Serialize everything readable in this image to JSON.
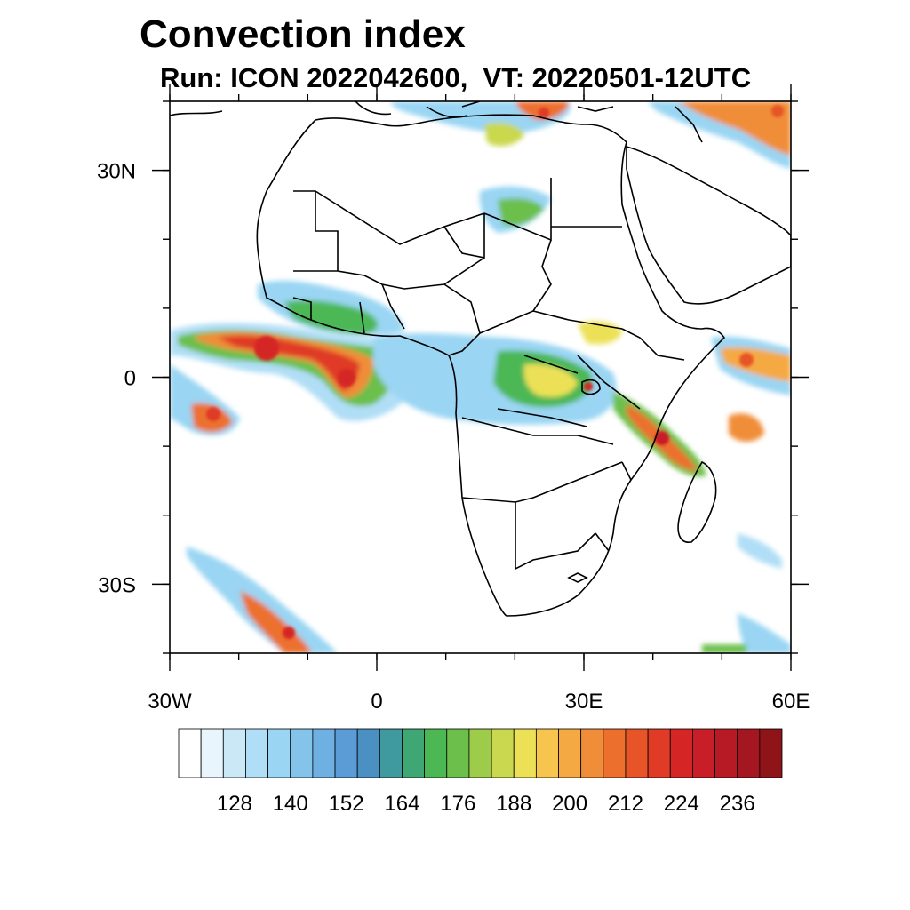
{
  "title": "Convection index",
  "subtitle": "Run: ICON 2022042600,  VT: 20220501-12UTC",
  "map": {
    "lon_range": [
      -30,
      60
    ],
    "lat_range": [
      -40,
      40
    ],
    "lon_ticks": [
      {
        "value": -30,
        "label": "30W"
      },
      {
        "value": 0,
        "label": "0"
      },
      {
        "value": 30,
        "label": "30E"
      },
      {
        "value": 60,
        "label": "60E"
      }
    ],
    "lat_ticks": [
      {
        "value": 30,
        "label": "30N"
      },
      {
        "value": 0,
        "label": "0"
      },
      {
        "value": -30,
        "label": "30S"
      }
    ],
    "minor_lon_step": 10,
    "minor_lat_step": 10
  },
  "colorbar": {
    "colors": [
      "#ffffff",
      "#e8f5fc",
      "#cbe8f7",
      "#b0def6",
      "#9ad5f3",
      "#84c3ea",
      "#6eb0e2",
      "#5b9bd6",
      "#4a90c2",
      "#3f9aa0",
      "#3fa774",
      "#4cb854",
      "#6cbf4b",
      "#9ccc4a",
      "#c9d84e",
      "#ece156",
      "#f7c44d",
      "#f5a942",
      "#f08d38",
      "#ec6f2e",
      "#e65428",
      "#df3b26",
      "#d52525",
      "#c81e28",
      "#b71a25",
      "#a51720",
      "#8e1419"
    ],
    "labels": [
      "128",
      "140",
      "152",
      "164",
      "176",
      "188",
      "200",
      "212",
      "224",
      "236"
    ]
  }
}
